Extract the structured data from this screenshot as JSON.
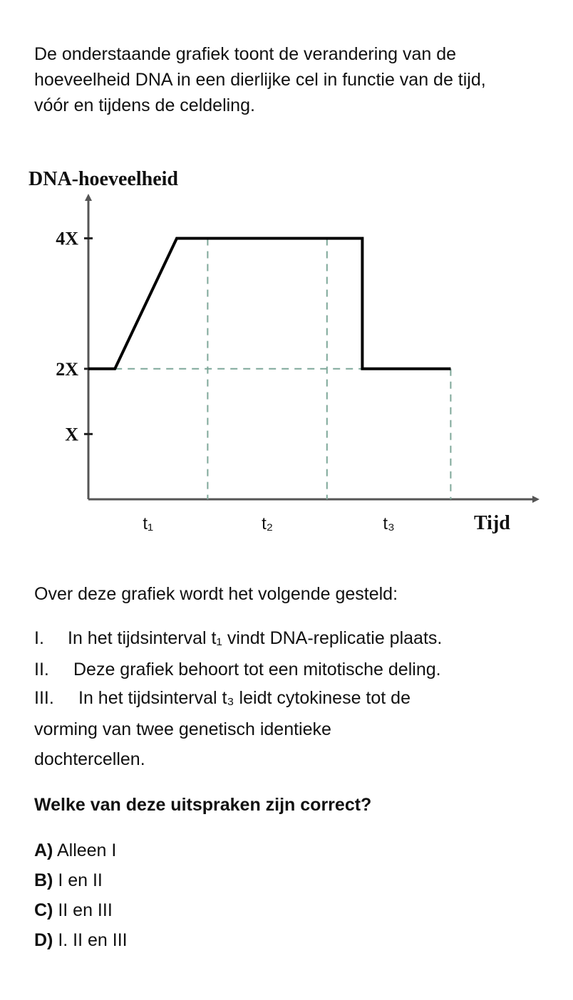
{
  "intro": {
    "line1": "De onderstaande grafiek toont de verandering van de",
    "line2": "hoeveelheid DNA in een dierlijke cel in functie van de tijd,",
    "line3": "vóór en tijdens de celdeling."
  },
  "chart_data": {
    "type": "line",
    "ylabel": "DNA-hoeveelheid",
    "xlabel": "Tijd",
    "y_ticks": [
      "X",
      "2X",
      "4X"
    ],
    "y_tick_values": [
      1,
      2,
      4
    ],
    "ylim": [
      0,
      5
    ],
    "xlim": [
      0,
      10
    ],
    "x_intervals": [
      "t₁",
      "t₂",
      "t₃"
    ],
    "series": [
      {
        "points": [
          [
            0,
            2
          ],
          [
            0.6,
            2
          ],
          [
            2.0,
            4
          ],
          [
            6.2,
            4
          ],
          [
            6.2,
            2
          ],
          [
            8.2,
            2
          ]
        ]
      }
    ],
    "dashed_vertical_x": [
      2.7,
      5.4,
      8.2
    ],
    "dashed_horizontal_y": 2,
    "grid": false,
    "colors": {
      "line": "#000000",
      "axis": "#555555",
      "dashed": "#7fa89a"
    }
  },
  "question": {
    "intro": "Over deze grafiek wordt het volgende gesteld:",
    "items": [
      {
        "num": "I.",
        "text": "In het tijdsinterval t₁ vindt DNA-replicatie plaats."
      },
      {
        "num": "II.",
        "text": "Deze grafiek behoort tot een mitotische deling."
      },
      {
        "num": "III.",
        "text": "In het tijdsinterval t₃ leidt cytokinese tot de"
      }
    ],
    "item3_cont1": "vorming van twee genetisch identieke",
    "item3_cont2": "dochtercellen.",
    "prompt": "Welke van deze uitspraken zijn correct?",
    "options": [
      {
        "letter": "A)",
        "text": "Alleen  I"
      },
      {
        "letter": "B)",
        "text": "I en II"
      },
      {
        "letter": "C)",
        "text": "II en III"
      },
      {
        "letter": "D)",
        "text": "I. II en III"
      }
    ]
  }
}
